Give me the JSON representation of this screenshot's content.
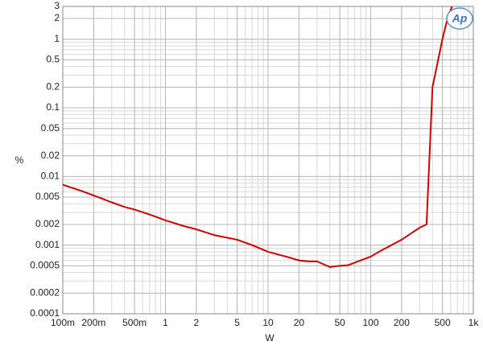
{
  "chart_data": {
    "type": "line",
    "x_label": "W",
    "y_label": "%",
    "logo": "Ap",
    "xscale": "log",
    "yscale": "log",
    "grid": true,
    "minor_grid": true,
    "xlim": [
      0.1,
      1000
    ],
    "ylim": [
      0.0001,
      3
    ],
    "xticks": [
      {
        "value": 0.1,
        "label": "100m"
      },
      {
        "value": 0.2,
        "label": "200m"
      },
      {
        "value": 0.5,
        "label": "500m"
      },
      1,
      2,
      5,
      10,
      20,
      50,
      100,
      200,
      500,
      {
        "value": 1000,
        "label": "1k"
      }
    ],
    "yticks": [
      3,
      2,
      1,
      0.5,
      0.2,
      0.1,
      0.05,
      0.02,
      0.01,
      0.005,
      0.002,
      0.001,
      0.0005,
      0.0002,
      0.0001
    ],
    "x": [
      0.1,
      0.15,
      0.2,
      0.3,
      0.4,
      0.5,
      0.7,
      1,
      1.5,
      2,
      3,
      5,
      7,
      10,
      15,
      20,
      25,
      30,
      40,
      50,
      60,
      80,
      100,
      120,
      200,
      300,
      350,
      400,
      500,
      560,
      620
    ],
    "series": [
      {
        "color": "#d40000",
        "values": [
          0.0076,
          0.0062,
          0.0053,
          0.0042,
          0.0036,
          0.0033,
          0.0028,
          0.0023,
          0.0019,
          0.0017,
          0.0014,
          0.0012,
          0.001,
          0.0008,
          0.00068,
          0.0006,
          0.00058,
          0.00058,
          0.00048,
          0.0005,
          0.00051,
          0.0006,
          0.00068,
          0.0008,
          0.0012,
          0.0018,
          0.002,
          0.2,
          1,
          2,
          3
        ]
      }
    ]
  }
}
